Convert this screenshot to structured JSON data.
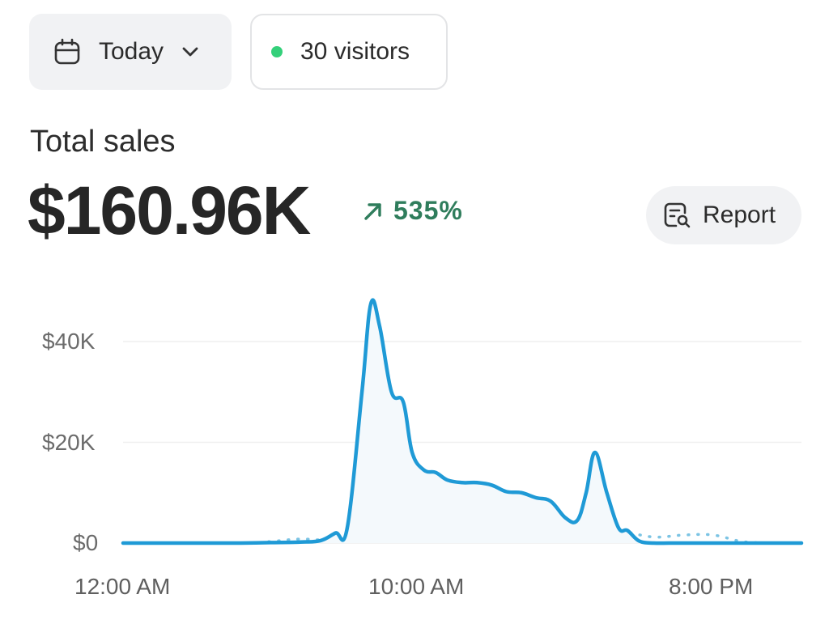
{
  "filters": {
    "date_range": {
      "label": "Today",
      "icon": "calendar-icon"
    },
    "visitors": {
      "label": "30 visitors",
      "status_color": "#34d07a"
    }
  },
  "summary": {
    "title": "Total sales",
    "value": "$160.96K",
    "change": "535%",
    "change_direction": "up",
    "change_color": "#2f7d5c"
  },
  "report_button": {
    "label": "Report",
    "icon": "report-search-icon"
  },
  "chart_data": {
    "type": "line",
    "y_ticks": [
      "$0",
      "$20K",
      "$40K"
    ],
    "x_ticks": [
      "12:00 AM",
      "10:00 AM",
      "8:00 PM"
    ],
    "ylim": [
      0,
      48000
    ],
    "grid": true,
    "colors": {
      "current": "#1f9ad6",
      "previous": "#7cc4e4"
    },
    "series": [
      {
        "style": "solid",
        "x": [
          0,
          1,
          2,
          3,
          4,
          5,
          6,
          6.7,
          7.2,
          7.6,
          8.1,
          8.4,
          8.7,
          9.1,
          9.5,
          9.8,
          10.2,
          10.6,
          11,
          11.5,
          12,
          12.5,
          13,
          13.5,
          14,
          14.5,
          15,
          15.4,
          15.7,
          16,
          16.4,
          16.8,
          17.1,
          17.5,
          18,
          18.5,
          19,
          20,
          21,
          22,
          23
        ],
        "y": [
          0,
          0,
          0,
          0,
          0,
          100,
          200,
          500,
          2000,
          3000,
          30000,
          47500,
          43000,
          30000,
          28000,
          18000,
          14500,
          14000,
          12500,
          12000,
          12000,
          11500,
          10200,
          10000,
          9000,
          8300,
          5000,
          4500,
          10000,
          18000,
          10000,
          3000,
          2500,
          400,
          0,
          0,
          0,
          0,
          0,
          0,
          0
        ]
      },
      {
        "style": "dotted",
        "x": [
          0,
          4,
          5,
          6,
          7,
          7.5,
          8,
          8.6,
          9,
          9.5,
          10,
          11,
          12,
          12.5,
          13,
          14,
          14.5,
          15,
          15.5,
          16,
          17,
          18,
          19,
          20,
          21,
          22,
          23
        ],
        "y": [
          0,
          0,
          300,
          800,
          600,
          1500,
          1300,
          800,
          1200,
          1600,
          2000,
          2300,
          2700,
          3100,
          2800,
          2400,
          1300,
          2400,
          4000,
          3500,
          2300,
          1200,
          1600,
          1600,
          300,
          0,
          0
        ]
      }
    ]
  }
}
